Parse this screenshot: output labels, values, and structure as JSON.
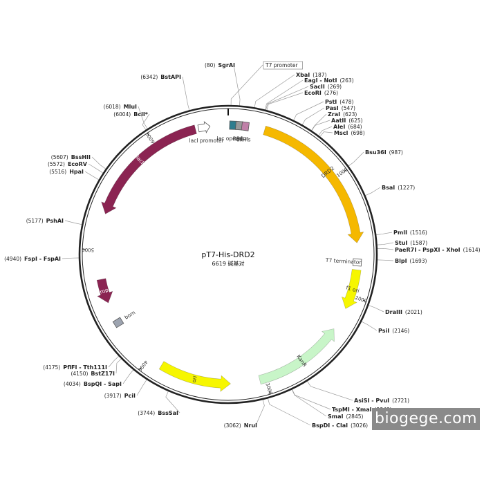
{
  "map": {
    "name": "pT7-His-DRD2",
    "size_text": "6619 碱基对",
    "length": 6619
  },
  "ticks": [
    {
      "pos": 0,
      "label": ""
    },
    {
      "pos": 1000,
      "label": "1000"
    },
    {
      "pos": 2000,
      "label": "2000"
    },
    {
      "pos": 3000,
      "label": "3000"
    },
    {
      "pos": 4000,
      "label": "4000"
    },
    {
      "pos": 5000,
      "label": "5000"
    },
    {
      "pos": 6000,
      "label": "6000"
    }
  ],
  "features": [
    {
      "id": "lacI",
      "label": "lacI",
      "start": 5300,
      "end": 6350,
      "dir": "ccw",
      "color": "#8b2452",
      "labelColor": "#ffffff"
    },
    {
      "id": "DRD2",
      "label": "DRD2",
      "start": 300,
      "end": 1560,
      "dir": "cw",
      "color": "#f5b800",
      "labelColor": "#333333"
    },
    {
      "id": "f1-ori",
      "label": "f1 ori",
      "start": 1780,
      "end": 2110,
      "dir": "cw",
      "color": "#f6f600",
      "labelColor": "#333333"
    },
    {
      "id": "KanR",
      "label": "KanR",
      "start": 2300,
      "end": 3050,
      "dir": "ccw",
      "color": "#c8f5c8",
      "labelColor": "#333333"
    },
    {
      "id": "ori",
      "label": "ori",
      "start": 3290,
      "end": 3880,
      "dir": "ccw",
      "color": "#f6f600",
      "labelColor": "#333333"
    },
    {
      "id": "rop",
      "label": "rop",
      "start": 4560,
      "end": 4760,
      "dir": "ccw",
      "color": "#8b2452",
      "labelColor": "#ffffff"
    }
  ],
  "boxes": [
    {
      "id": "lacI-promoter",
      "label": "lacI promoter",
      "pos": 6420,
      "color": "#ffffff",
      "shape": "arrow"
    },
    {
      "id": "lac-operator",
      "label": "lac operator",
      "pos": 40,
      "color": "#2e7d8e",
      "shape": "box"
    },
    {
      "id": "RBS",
      "label": "RBS",
      "pos": 90,
      "color": "#999999",
      "shape": "box"
    },
    {
      "id": "6xHis",
      "label": "6xHis",
      "pos": 140,
      "color": "#c080a8",
      "shape": "box"
    },
    {
      "id": "T7-terminator",
      "label": "T7 terminator",
      "pos": 1720,
      "color": "#ffffff",
      "shape": "box"
    },
    {
      "id": "bom",
      "label": "bom",
      "pos": 4380,
      "color": "#9da4b0",
      "shape": "box"
    }
  ],
  "sites_right": [
    {
      "name": "SgrAI",
      "pos_text": "(80)",
      "pos": 80
    },
    {
      "name": "T7 promoter",
      "pos_text": "",
      "pos": 20,
      "boxed": true
    },
    {
      "name": "XbaI",
      "pos_text": "(187)",
      "pos": 187
    },
    {
      "name": "EagI - NotI",
      "pos_text": "(263)",
      "pos": 263
    },
    {
      "name": "SacII",
      "pos_text": "(269)",
      "pos": 269
    },
    {
      "name": "EcoRI",
      "pos_text": "(276)",
      "pos": 276
    },
    {
      "name": "PstI",
      "pos_text": "(478)",
      "pos": 478
    },
    {
      "name": "PasI",
      "pos_text": "(547)",
      "pos": 547
    },
    {
      "name": "ZraI",
      "pos_text": "(623)",
      "pos": 623
    },
    {
      "name": "AatII",
      "pos_text": "(625)",
      "pos": 625
    },
    {
      "name": "AleI",
      "pos_text": "(684)",
      "pos": 684
    },
    {
      "name": "MscI",
      "pos_text": "(698)",
      "pos": 698
    },
    {
      "name": "Bsu36I",
      "pos_text": "(987)",
      "pos": 987
    },
    {
      "name": "BsaI",
      "pos_text": "(1227)",
      "pos": 1227
    },
    {
      "name": "PmlI",
      "pos_text": "(1516)",
      "pos": 1516
    },
    {
      "name": "StuI",
      "pos_text": "(1587)",
      "pos": 1587
    },
    {
      "name": "PaeR7I - PspXI - XhoI",
      "pos_text": "(1614)",
      "pos": 1614
    },
    {
      "name": "BlpI",
      "pos_text": "(1693)",
      "pos": 1693
    },
    {
      "name": "DraIII",
      "pos_text": "(2021)",
      "pos": 2021
    },
    {
      "name": "PsiI",
      "pos_text": "(2146)",
      "pos": 2146
    },
    {
      "name": "AsiSI - PvuI",
      "pos_text": "(2721)",
      "pos": 2721
    },
    {
      "name": "TspMI - XmaI",
      "pos_text": "(2843)",
      "pos": 2843
    },
    {
      "name": "SmaI",
      "pos_text": "(2845)",
      "pos": 2845
    },
    {
      "name": "BspDI - ClaI",
      "pos_text": "(3026)",
      "pos": 3026
    },
    {
      "name": "NruI",
      "pos_text": "(3062)",
      "pos": 3062
    }
  ],
  "sites_left": [
    {
      "name": "BssSaI",
      "pos_text": "(3744)",
      "pos": 3744
    },
    {
      "name": "PciI",
      "pos_text": "(3917)",
      "pos": 3917
    },
    {
      "name": "BspQI - SapI",
      "pos_text": "(4034)",
      "pos": 4034
    },
    {
      "name": "BstZ17I",
      "pos_text": "(4150)",
      "pos": 4150
    },
    {
      "name": "PflFI - Tth111I",
      "pos_text": "(4175)",
      "pos": 4175
    },
    {
      "name": "FspI - FspAI",
      "pos_text": "(4940)",
      "pos": 4940
    },
    {
      "name": "PshAI",
      "pos_text": "(5177)",
      "pos": 5177
    },
    {
      "name": "HpaI",
      "pos_text": "(5516)",
      "pos": 5516
    },
    {
      "name": "EcoRV",
      "pos_text": "(5572)",
      "pos": 5572
    },
    {
      "name": "BssHII",
      "pos_text": "(5607)",
      "pos": 5607
    },
    {
      "name": "BclI*",
      "pos_text": "(6004)",
      "pos": 6004,
      "grey": true
    },
    {
      "name": "MluI",
      "pos_text": "(6018)",
      "pos": 6018
    },
    {
      "name": "BstAPI",
      "pos_text": "(6342)",
      "pos": 6342
    }
  ],
  "colors": {
    "backbone": "#222222",
    "leader": "#9a9a9a"
  },
  "watermark": "biogege.com"
}
